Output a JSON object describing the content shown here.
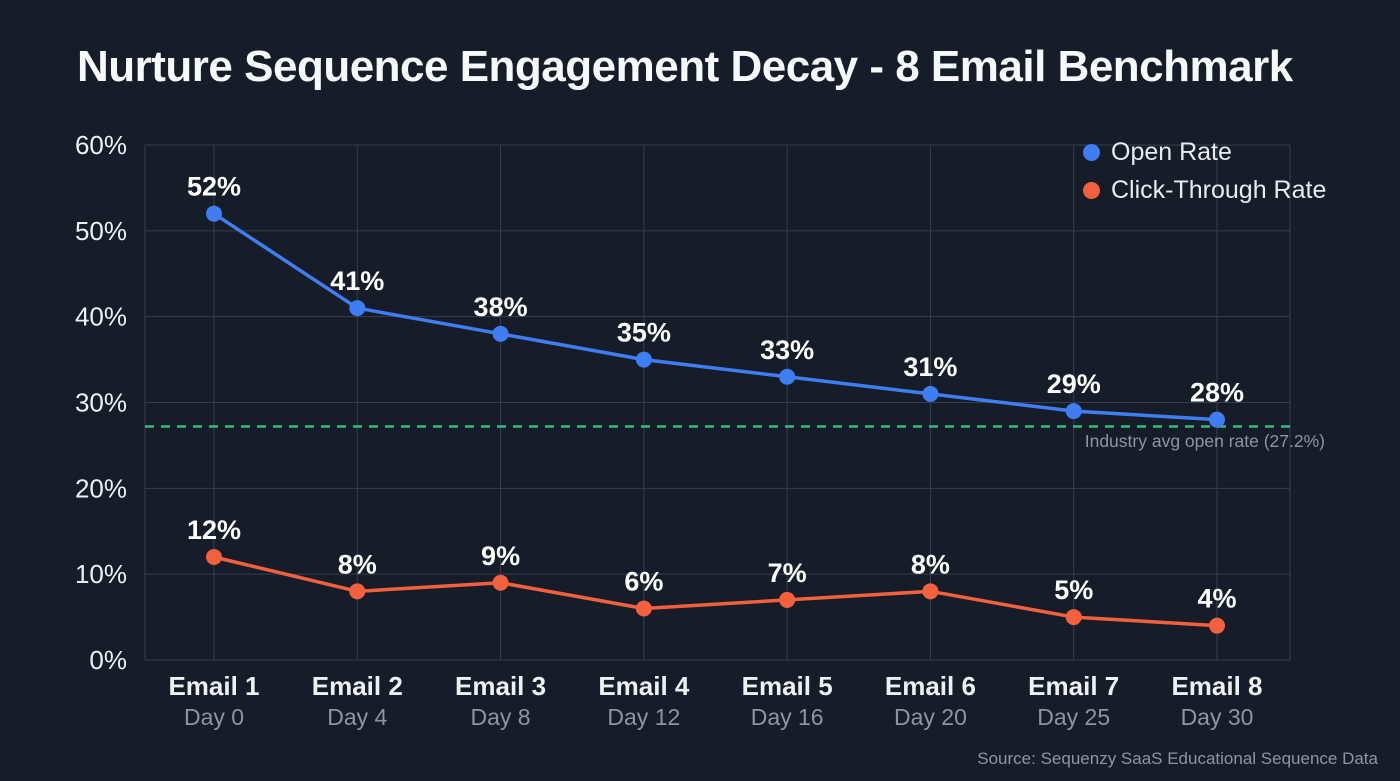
{
  "page": {
    "title": "Nurture Sequence Engagement Decay - 8 Email Benchmark",
    "source_note": "Source: Sequenzy SaaS Educational Sequence Data"
  },
  "legend": {
    "items": [
      {
        "label": "Open Rate",
        "color": "#3f7ef2"
      },
      {
        "label": "Click-Through Rate",
        "color": "#f2603d"
      }
    ]
  },
  "chart_data": {
    "type": "line",
    "title": "Nurture Sequence Engagement Decay - 8 Email Benchmark",
    "categories": [
      "Email 1",
      "Email 2",
      "Email 3",
      "Email 4",
      "Email 5",
      "Email 6",
      "Email 7",
      "Email 8"
    ],
    "category_sublabels": [
      "Day 0",
      "Day 4",
      "Day 8",
      "Day 12",
      "Day 16",
      "Day 20",
      "Day 25",
      "Day 30"
    ],
    "series": [
      {
        "name": "Open Rate",
        "color": "#3f7ef2",
        "values": [
          52,
          41,
          38,
          35,
          33,
          31,
          29,
          28
        ],
        "point_labels": [
          "52%",
          "41%",
          "38%",
          "35%",
          "33%",
          "31%",
          "29%",
          "28%"
        ]
      },
      {
        "name": "Click-Through Rate",
        "color": "#f2603d",
        "values": [
          12,
          8,
          9,
          6,
          7,
          8,
          5,
          4
        ],
        "point_labels": [
          "12%",
          "8%",
          "9%",
          "6%",
          "7%",
          "8%",
          "5%",
          "4%"
        ]
      }
    ],
    "xlabel": "",
    "ylabel": "",
    "ylim": [
      0,
      60
    ],
    "yticks": [
      0,
      10,
      20,
      30,
      40,
      50,
      60
    ],
    "ytick_labels": [
      "0%",
      "10%",
      "20%",
      "30%",
      "40%",
      "50%",
      "60%"
    ],
    "grid": true,
    "legend_position": "top-right",
    "reference_line": {
      "value": 27.2,
      "label": "Industry avg open rate (27.2%)",
      "color": "#2dbe7e",
      "style": "dashed"
    }
  },
  "colors": {
    "background": "#161c28",
    "grid": "#363e4e",
    "point_label": "#ffffff",
    "text_primary": "#eef0f3",
    "text_secondary": "#8d95a5"
  }
}
